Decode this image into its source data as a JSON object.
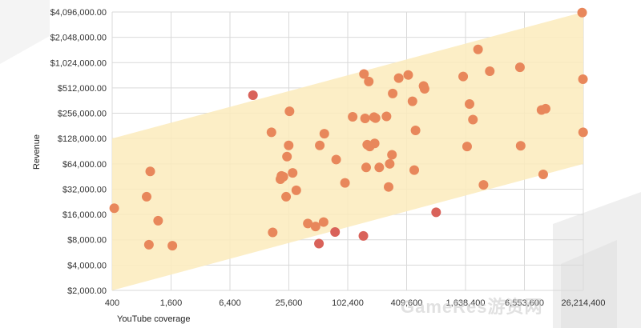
{
  "chart_data": {
    "type": "scatter",
    "xlabel": "YouTube coverage",
    "ylabel": "Revenue",
    "x_scale": "log2",
    "y_scale": "log2",
    "xlim": [
      400,
      26214400
    ],
    "ylim": [
      2000,
      4096000
    ],
    "x_ticks": [
      400,
      1600,
      6400,
      25600,
      102400,
      409600,
      1638400,
      6553600,
      26214400
    ],
    "x_tick_labels": [
      "400",
      "1,600",
      "6,400",
      "25,600",
      "102,400",
      "409,600",
      "1,638,400",
      "6,553,600",
      "26,214,400"
    ],
    "y_ticks": [
      2000,
      4000,
      8000,
      16000,
      32000,
      64000,
      128000,
      256000,
      512000,
      1024000,
      2048000,
      4096000
    ],
    "y_tick_labels": [
      "$2,000.00",
      "$4,000.00",
      "$8,000.00",
      "$16,000.00",
      "$32,000.00",
      "$64,000.00",
      "$128,000.00",
      "$256,000.00",
      "$512,000.00",
      "$1,024,000.00",
      "$2,048,000.00",
      "$4,096,000.00"
    ],
    "grid": true,
    "colors": {
      "point": "#E8875B",
      "point_outlier": "#D9625A",
      "band": "#FCEBBC"
    },
    "band": {
      "x": [
        400,
        26214400
      ],
      "lower": [
        2000,
        64000
      ],
      "upper": [
        128000,
        4096000
      ]
    },
    "points": [
      {
        "x": 420,
        "y": 19000
      },
      {
        "x": 900,
        "y": 26000
      },
      {
        "x": 980,
        "y": 52000
      },
      {
        "x": 950,
        "y": 7000
      },
      {
        "x": 1180,
        "y": 13500
      },
      {
        "x": 1650,
        "y": 6800
      },
      {
        "x": 11000,
        "y": 420000,
        "outlier": true
      },
      {
        "x": 17000,
        "y": 152000
      },
      {
        "x": 17500,
        "y": 9800
      },
      {
        "x": 21000,
        "y": 42000
      },
      {
        "x": 21500,
        "y": 46000
      },
      {
        "x": 22500,
        "y": 45000
      },
      {
        "x": 24000,
        "y": 26000
      },
      {
        "x": 24500,
        "y": 78000
      },
      {
        "x": 25500,
        "y": 106000
      },
      {
        "x": 26000,
        "y": 270000
      },
      {
        "x": 28000,
        "y": 50000
      },
      {
        "x": 30500,
        "y": 31000
      },
      {
        "x": 40000,
        "y": 12500
      },
      {
        "x": 48000,
        "y": 11500
      },
      {
        "x": 52000,
        "y": 7200,
        "outlier": true
      },
      {
        "x": 53000,
        "y": 106000
      },
      {
        "x": 58000,
        "y": 13000
      },
      {
        "x": 59000,
        "y": 146000
      },
      {
        "x": 76000,
        "y": 9900,
        "outlier": true
      },
      {
        "x": 78000,
        "y": 72000
      },
      {
        "x": 96000,
        "y": 38000
      },
      {
        "x": 115000,
        "y": 232000
      },
      {
        "x": 148000,
        "y": 8900,
        "outlier": true
      },
      {
        "x": 150000,
        "y": 750000
      },
      {
        "x": 154000,
        "y": 222000
      },
      {
        "x": 158000,
        "y": 58000
      },
      {
        "x": 162000,
        "y": 108000
      },
      {
        "x": 168000,
        "y": 610000
      },
      {
        "x": 172000,
        "y": 103000
      },
      {
        "x": 190000,
        "y": 230000
      },
      {
        "x": 193000,
        "y": 112000
      },
      {
        "x": 197000,
        "y": 224000
      },
      {
        "x": 215000,
        "y": 58000
      },
      {
        "x": 255000,
        "y": 235000
      },
      {
        "x": 268000,
        "y": 34000
      },
      {
        "x": 275000,
        "y": 64000
      },
      {
        "x": 290000,
        "y": 82000
      },
      {
        "x": 295000,
        "y": 440000
      },
      {
        "x": 340000,
        "y": 670000
      },
      {
        "x": 425000,
        "y": 730000
      },
      {
        "x": 470000,
        "y": 355000
      },
      {
        "x": 490000,
        "y": 54000
      },
      {
        "x": 505000,
        "y": 160000
      },
      {
        "x": 610000,
        "y": 540000
      },
      {
        "x": 625000,
        "y": 500000
      },
      {
        "x": 820000,
        "y": 17000,
        "outlier": true
      },
      {
        "x": 1550000,
        "y": 700000
      },
      {
        "x": 1700000,
        "y": 103000
      },
      {
        "x": 1800000,
        "y": 330000
      },
      {
        "x": 1950000,
        "y": 215000
      },
      {
        "x": 2200000,
        "y": 1470000
      },
      {
        "x": 2500000,
        "y": 36000
      },
      {
        "x": 2900000,
        "y": 810000
      },
      {
        "x": 5900000,
        "y": 900000
      },
      {
        "x": 6000000,
        "y": 105000
      },
      {
        "x": 9800000,
        "y": 280000
      },
      {
        "x": 10200000,
        "y": 48000
      },
      {
        "x": 10800000,
        "y": 290000
      },
      {
        "x": 25500000,
        "y": 4030000
      },
      {
        "x": 26000000,
        "y": 650000
      },
      {
        "x": 26100000,
        "y": 152000
      }
    ]
  }
}
